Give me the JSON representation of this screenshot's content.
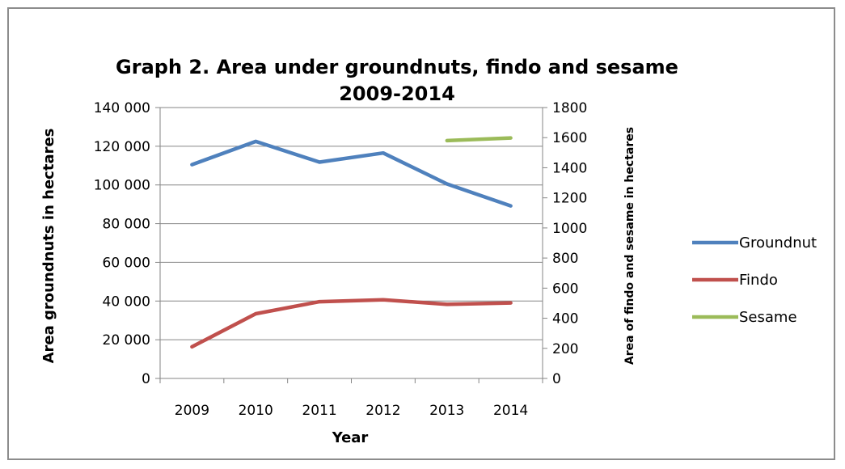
{
  "chart_data": {
    "type": "line",
    "title": [
      "Graph 2. Area under groundnuts, findo and sesame",
      "2009-2014"
    ],
    "xlabel": "Year",
    "ylabel": "Area groundnuts in hectares",
    "y2label": "Area of findo and sesame in hectares",
    "categories": [
      "2009",
      "2010",
      "2011",
      "2012",
      "2013",
      "2014"
    ],
    "ylim": [
      0,
      140000
    ],
    "y2lim": [
      0,
      1800
    ],
    "yticks": [
      "0",
      "20 000",
      "40 000",
      "60 000",
      "80 000",
      "100 000",
      "120 000",
      "140 000"
    ],
    "y2ticks": [
      "0",
      "200",
      "400",
      "600",
      "800",
      "1000",
      "1200",
      "1400",
      "1600",
      "1800"
    ],
    "legend_position": "right",
    "series": [
      {
        "name": "Groundnut",
        "axis": "left",
        "color": "#4f81bd",
        "values": [
          110500,
          122500,
          111800,
          116500,
          100500,
          89200
        ]
      },
      {
        "name": "Findo",
        "axis": "right",
        "color": "#c0504d",
        "values": [
          210,
          430,
          510,
          523,
          492,
          502
        ]
      },
      {
        "name": "Sesame",
        "axis": "right",
        "color": "#9bbb59",
        "values": [
          null,
          null,
          null,
          null,
          1580,
          1598
        ]
      }
    ]
  }
}
